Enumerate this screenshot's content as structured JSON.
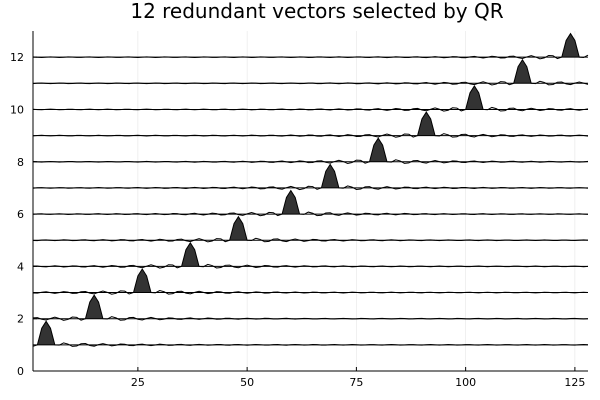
{
  "chart_data": {
    "type": "line",
    "title": "12 redundant vectors selected by QR",
    "xlabel": "",
    "ylabel": "",
    "xlim": [
      1,
      128
    ],
    "ylim": [
      0,
      13
    ],
    "xticks": [
      25,
      50,
      75,
      100,
      125
    ],
    "yticks": [
      0,
      2,
      4,
      6,
      8,
      10,
      12
    ],
    "grid": true,
    "legend": "none",
    "colors": {
      "line": "#000000",
      "fill": "#333333",
      "grid": "#e6e6e6",
      "axis": "#000000"
    },
    "series_description": "Each vector i is drawn as a line offset to y = i; positive lobes filled dark",
    "peak_height": 0.9,
    "peaks": [
      {
        "offset": 1,
        "center_x": 4
      },
      {
        "offset": 2,
        "center_x": 15
      },
      {
        "offset": 3,
        "center_x": 26
      },
      {
        "offset": 4,
        "center_x": 37
      },
      {
        "offset": 5,
        "center_x": 48
      },
      {
        "offset": 6,
        "center_x": 60
      },
      {
        "offset": 7,
        "center_x": 69
      },
      {
        "offset": 8,
        "center_x": 80
      },
      {
        "offset": 9,
        "center_x": 91
      },
      {
        "offset": 10,
        "center_x": 102
      },
      {
        "offset": 11,
        "center_x": 113
      },
      {
        "offset": 12,
        "center_x": 124
      }
    ]
  }
}
